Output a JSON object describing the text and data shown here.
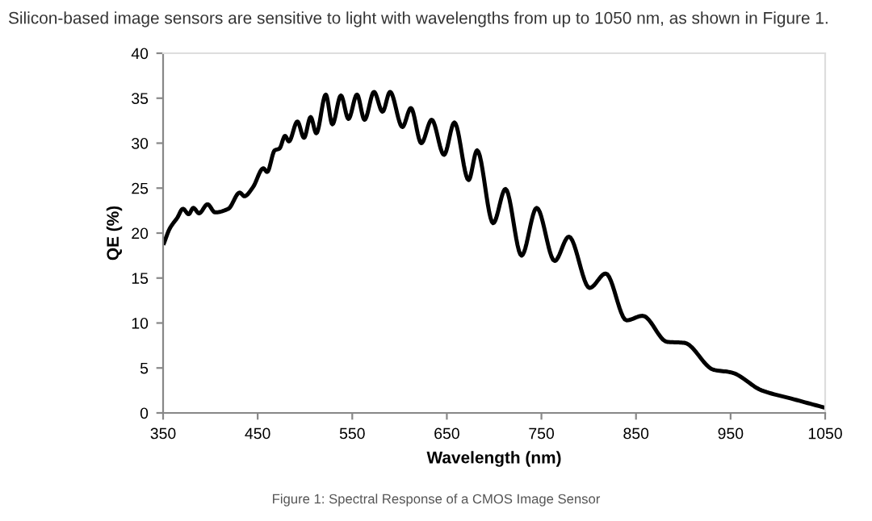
{
  "chart_data": {
    "type": "line",
    "title": "Silicon-based image sensors are sensitive to light with wavelengths from up to 1050 nm, as shown in Figure 1.",
    "xlabel": "Wavelength (nm)",
    "ylabel": "QE (%)",
    "annotations": [
      "Figure 1: Spectral Response of a CMOS Image Sensor"
    ],
    "series": [
      {
        "color": "#000000",
        "x": [
          351,
          357,
          365,
          371,
          377,
          382,
          388,
          397,
          405,
          419,
          431,
          436,
          445,
          456,
          460,
          468,
          473,
          479,
          483,
          492,
          499,
          506,
          512,
          522,
          529,
          538,
          546,
          555,
          563,
          573,
          582,
          590,
          603,
          612,
          623,
          634,
          647,
          658,
          673,
          682,
          699,
          712,
          729,
          745,
          764,
          779,
          801,
          818,
          840,
          857,
          883,
          901,
          932,
          951,
          983,
          1014,
          1049
        ],
        "values": [
          18.9,
          20.5,
          21.7,
          22.7,
          22.1,
          22.8,
          22.2,
          23.2,
          22.3,
          22.7,
          24.5,
          24.1,
          25.1,
          27.2,
          26.8,
          29.2,
          29.4,
          30.8,
          30.2,
          32.4,
          30.6,
          32.9,
          31.1,
          35.4,
          32.1,
          35.3,
          32.7,
          35.4,
          32.6,
          35.7,
          33.5,
          35.7,
          31.8,
          33.9,
          30.0,
          32.6,
          28.7,
          32.3,
          25.9,
          29.2,
          21.1,
          24.9,
          17.5,
          22.8,
          16.9,
          19.6,
          13.9,
          15.5,
          10.3,
          10.8,
          7.9,
          7.8,
          4.8,
          4.5,
          2.5,
          1.6,
          0.6
        ]
      }
    ],
    "xlim": [
      350,
      1050
    ],
    "xticks": [
      350,
      450,
      550,
      650,
      750,
      850,
      950,
      1050
    ],
    "ylim": [
      0,
      40
    ],
    "yticks": [
      0,
      5,
      10,
      15,
      20,
      25,
      30,
      35,
      40
    ],
    "grid": false,
    "legend": false,
    "marker": "none",
    "line_style": "solid"
  }
}
